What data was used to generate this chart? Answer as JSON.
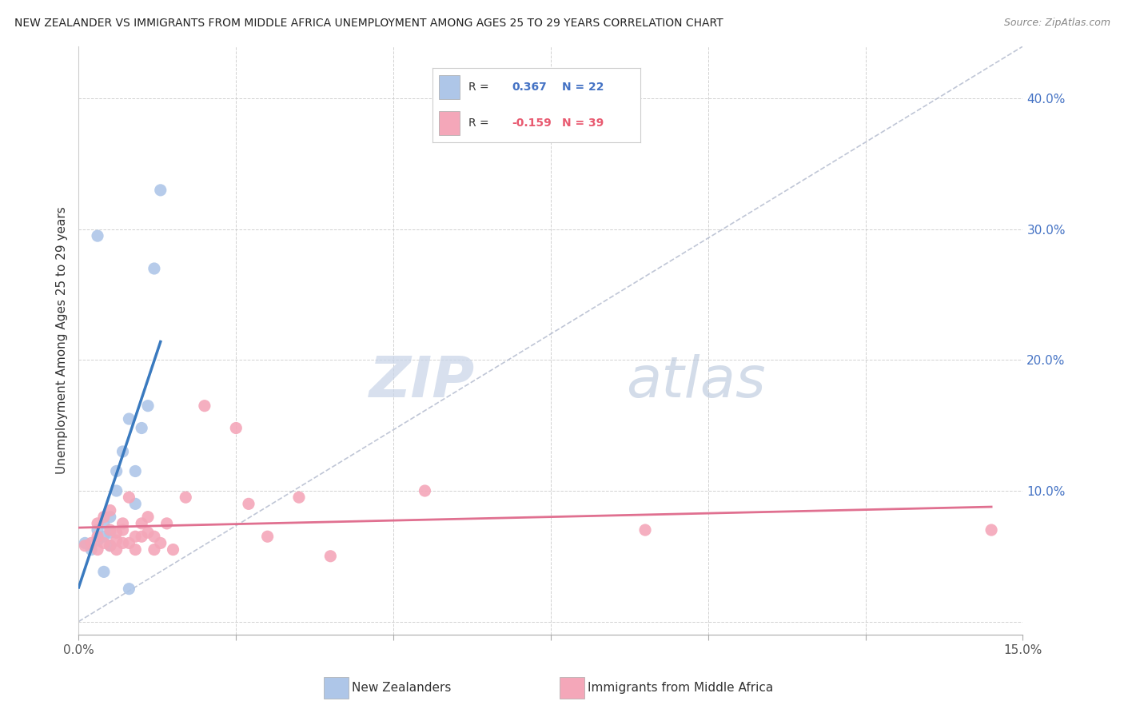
{
  "title": "NEW ZEALANDER VS IMMIGRANTS FROM MIDDLE AFRICA UNEMPLOYMENT AMONG AGES 25 TO 29 YEARS CORRELATION CHART",
  "source": "Source: ZipAtlas.com",
  "ylabel": "Unemployment Among Ages 25 to 29 years",
  "xlim": [
    0.0,
    0.15
  ],
  "ylim": [
    -0.01,
    0.44
  ],
  "xticks": [
    0.0,
    0.025,
    0.05,
    0.075,
    0.1,
    0.125,
    0.15
  ],
  "xtick_labels": [
    "0.0%",
    "",
    "",
    "",
    "",
    "",
    "15.0%"
  ],
  "yticks": [
    0.0,
    0.1,
    0.2,
    0.3,
    0.4
  ],
  "ytick_labels_right": [
    "",
    "10.0%",
    "20.0%",
    "30.0%",
    "40.0%"
  ],
  "legend_nz_r": "0.367",
  "legend_nz_n": "22",
  "legend_imm_r": "-0.159",
  "legend_imm_n": "39",
  "nz_color": "#aec6e8",
  "imm_color": "#f4a7b9",
  "nz_line_color": "#3a7abf",
  "imm_line_color": "#e07090",
  "watermark_zip": "ZIP",
  "watermark_atlas": "atlas",
  "background_color": "#ffffff",
  "nz_scatter_x": [
    0.001,
    0.002,
    0.003,
    0.003,
    0.004,
    0.004,
    0.005,
    0.005,
    0.005,
    0.006,
    0.006,
    0.007,
    0.008,
    0.009,
    0.009,
    0.01,
    0.011,
    0.012,
    0.013,
    0.003,
    0.004,
    0.008
  ],
  "nz_scatter_y": [
    0.06,
    0.055,
    0.062,
    0.07,
    0.065,
    0.075,
    0.058,
    0.068,
    0.08,
    0.1,
    0.115,
    0.13,
    0.155,
    0.09,
    0.115,
    0.148,
    0.165,
    0.27,
    0.33,
    0.295,
    0.038,
    0.025
  ],
  "imm_scatter_x": [
    0.001,
    0.002,
    0.003,
    0.003,
    0.003,
    0.004,
    0.004,
    0.005,
    0.005,
    0.005,
    0.006,
    0.006,
    0.006,
    0.007,
    0.007,
    0.007,
    0.008,
    0.008,
    0.009,
    0.009,
    0.01,
    0.01,
    0.011,
    0.011,
    0.012,
    0.012,
    0.013,
    0.014,
    0.015,
    0.017,
    0.02,
    0.025,
    0.027,
    0.03,
    0.035,
    0.04,
    0.055,
    0.09,
    0.145
  ],
  "imm_scatter_y": [
    0.058,
    0.06,
    0.055,
    0.065,
    0.075,
    0.06,
    0.08,
    0.058,
    0.07,
    0.085,
    0.062,
    0.068,
    0.055,
    0.06,
    0.07,
    0.075,
    0.06,
    0.095,
    0.065,
    0.055,
    0.065,
    0.075,
    0.068,
    0.08,
    0.055,
    0.065,
    0.06,
    0.075,
    0.055,
    0.095,
    0.165,
    0.148,
    0.09,
    0.065,
    0.095,
    0.05,
    0.1,
    0.07,
    0.07
  ]
}
